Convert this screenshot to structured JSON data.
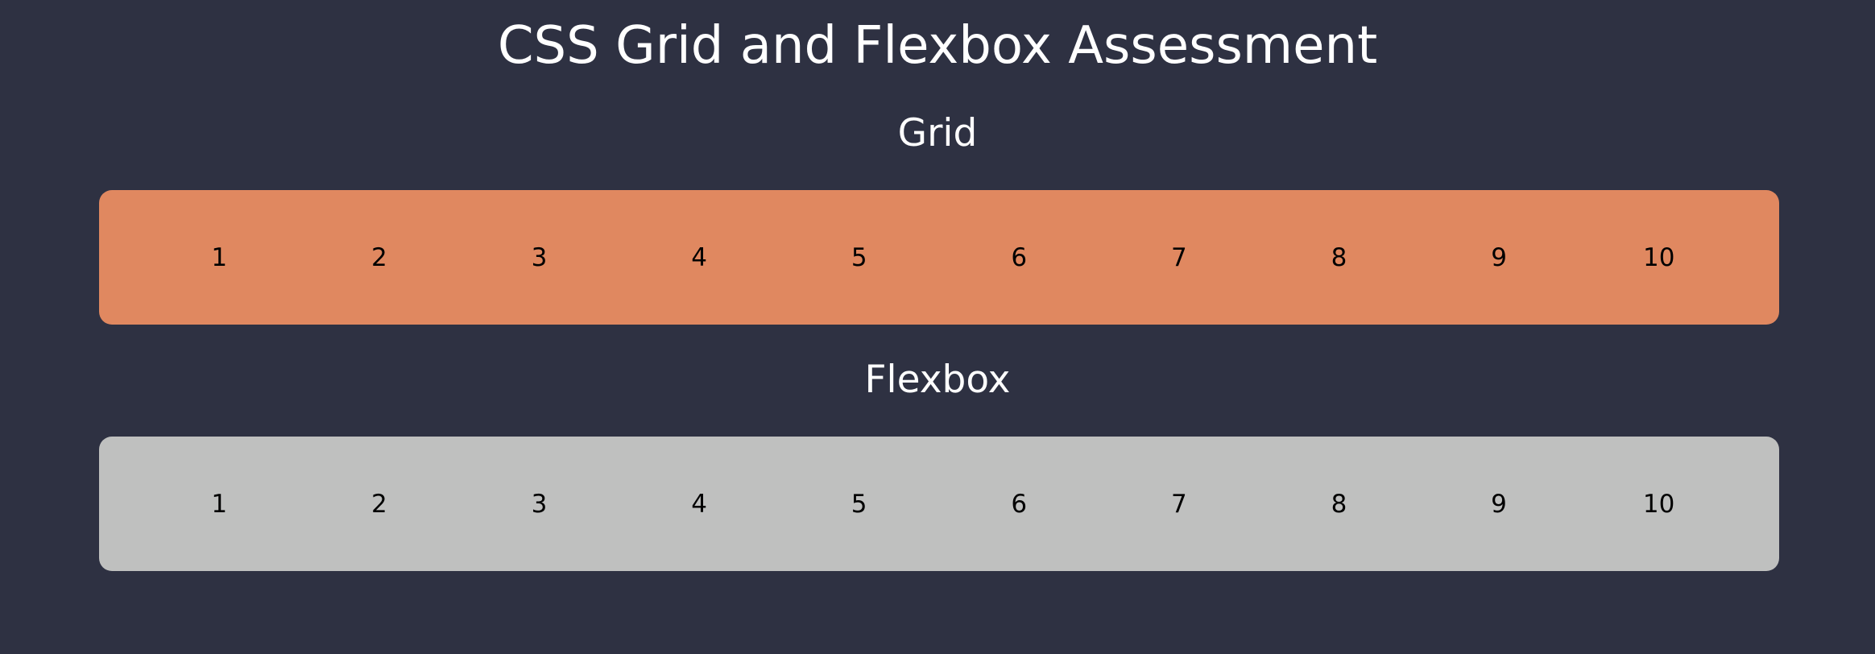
{
  "page": {
    "title": "CSS Grid and Flexbox Assessment",
    "background_color": "#2e3142"
  },
  "grid_section": {
    "heading": "Grid",
    "panel_color": "#e08860",
    "items": [
      "1",
      "2",
      "3",
      "4",
      "5",
      "6",
      "7",
      "8",
      "9",
      "10"
    ]
  },
  "flex_section": {
    "heading": "Flexbox",
    "panel_color": "#bfc0bf",
    "items": [
      "1",
      "2",
      "3",
      "4",
      "5",
      "6",
      "7",
      "8",
      "9",
      "10"
    ]
  }
}
